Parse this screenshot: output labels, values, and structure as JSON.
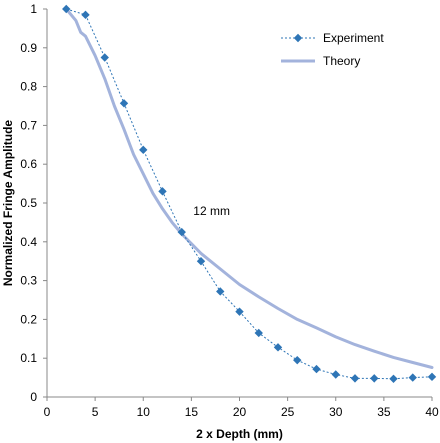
{
  "chart_data": {
    "type": "line",
    "xlabel": "2 x Depth (mm)",
    "ylabel": "Normalized Fringe Amplitude",
    "xlim": [
      0,
      40
    ],
    "ylim": [
      0,
      1
    ],
    "xticks": [
      0,
      5,
      10,
      15,
      20,
      25,
      30,
      35,
      40
    ],
    "yticks": [
      0,
      0.1,
      0.2,
      0.3,
      0.4,
      0.5,
      0.6,
      0.7,
      0.8,
      0.9,
      1
    ],
    "grid": false,
    "legend_position": "top-right",
    "series": [
      {
        "name": "Experiment",
        "style": "dotted line with diamond markers",
        "color": "#2e75b6",
        "x": [
          2,
          4,
          6,
          8,
          10,
          12,
          14,
          16,
          18,
          20,
          22,
          24,
          26,
          28,
          30,
          32,
          34,
          36,
          38,
          40
        ],
        "y": [
          1.0,
          0.985,
          0.875,
          0.757,
          0.637,
          0.53,
          0.425,
          0.35,
          0.272,
          0.22,
          0.165,
          0.128,
          0.095,
          0.072,
          0.058,
          0.048,
          0.048,
          0.047,
          0.05,
          0.052
        ]
      },
      {
        "name": "Theory",
        "style": "solid thick line",
        "color": "#a3b3dc",
        "x": [
          2,
          3,
          3.5,
          4,
          5,
          6,
          7,
          8,
          9,
          10,
          11,
          12,
          13,
          14,
          15,
          16,
          18,
          20,
          22,
          24,
          26,
          28,
          30,
          32,
          34,
          36,
          38,
          40
        ],
        "y": [
          1.0,
          0.97,
          0.94,
          0.93,
          0.88,
          0.82,
          0.75,
          0.69,
          0.625,
          0.575,
          0.525,
          0.485,
          0.45,
          0.42,
          0.395,
          0.37,
          0.33,
          0.29,
          0.258,
          0.228,
          0.2,
          0.178,
          0.155,
          0.135,
          0.118,
          0.102,
          0.089,
          0.076
        ]
      }
    ],
    "annotations": [
      {
        "text": "12 mm",
        "x": 15.2,
        "y": 0.48
      }
    ]
  }
}
